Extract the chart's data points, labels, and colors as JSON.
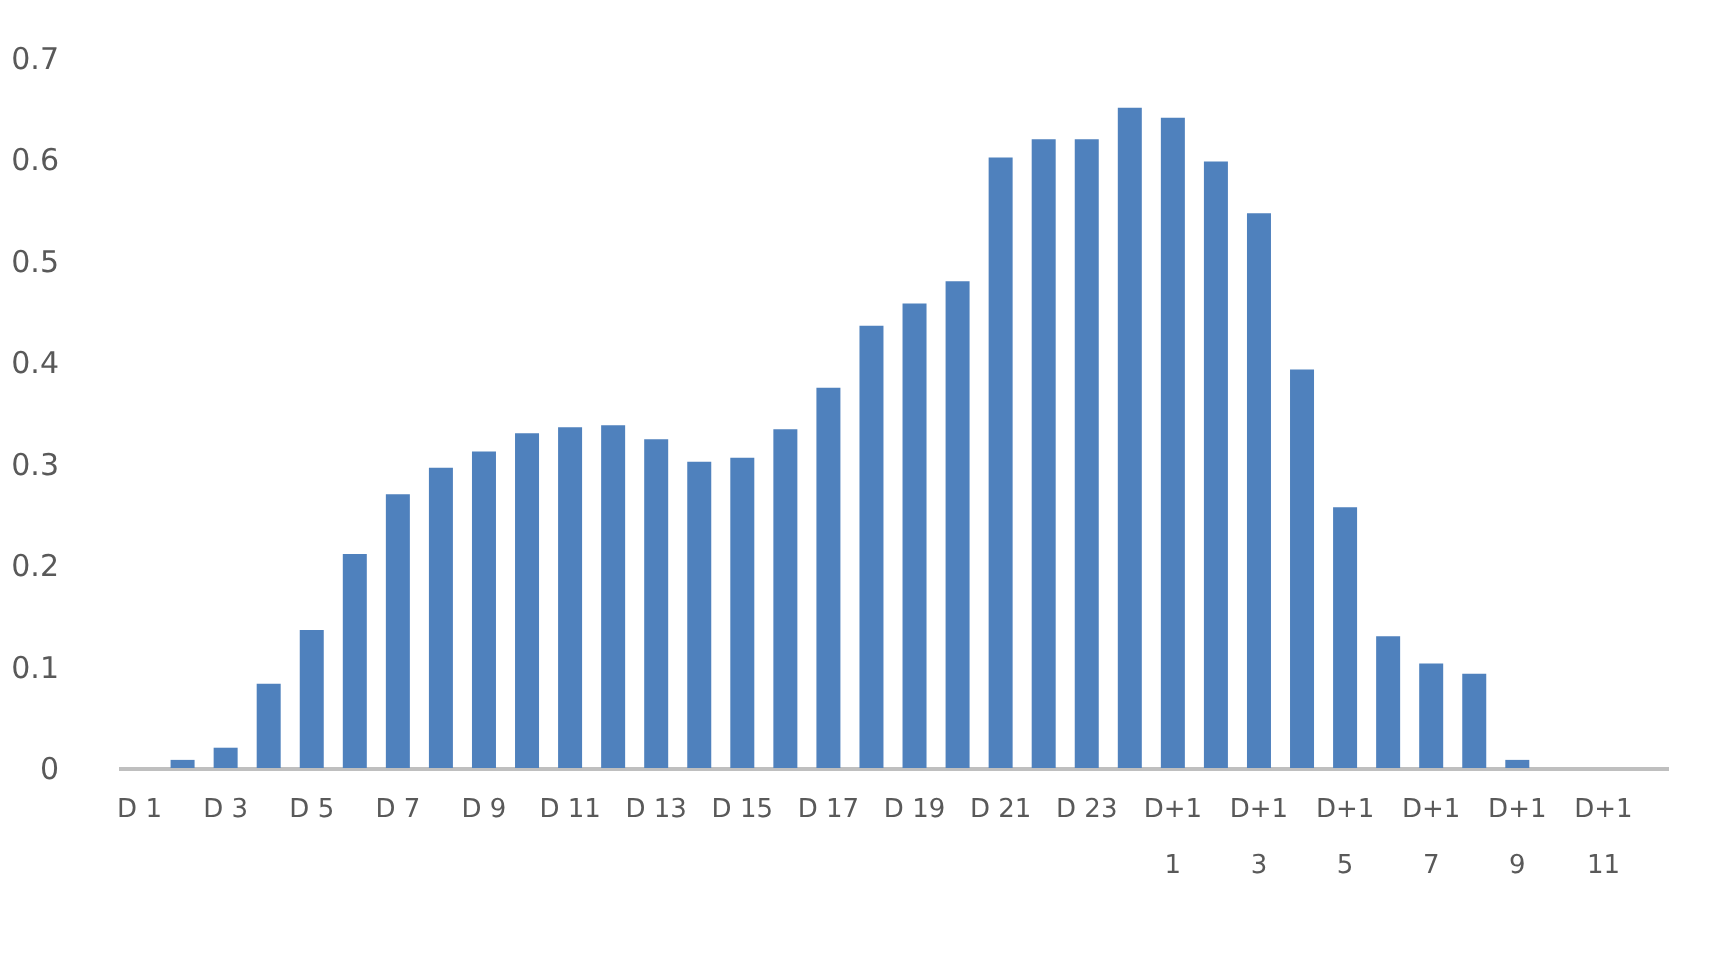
{
  "chart_data": {
    "type": "bar",
    "categories": [
      "D 1",
      null,
      "D 3",
      null,
      "D 5",
      null,
      "D 7",
      null,
      "D 9",
      null,
      "D 11",
      null,
      "D 13",
      null,
      "D 15",
      null,
      "D 17",
      null,
      "D 19",
      null,
      "D 21",
      null,
      "D 23",
      null,
      "D+1 1",
      null,
      "D+1 3",
      null,
      "D+1 5",
      null,
      "D+1 7",
      null,
      "D+1 9",
      null,
      "D+1 11",
      null
    ],
    "values": [
      0,
      0.008,
      0.02,
      0.083,
      0.136,
      0.211,
      0.27,
      0.296,
      0.312,
      0.33,
      0.336,
      0.338,
      0.324,
      0.302,
      0.306,
      0.334,
      0.375,
      0.436,
      0.458,
      0.48,
      0.602,
      0.62,
      0.62,
      0.651,
      0.641,
      0.598,
      0.547,
      0.393,
      0.257,
      0.13,
      0.103,
      0.093,
      0.008,
      0,
      0,
      0
    ],
    "color": "#4f81bd",
    "ylim": [
      0,
      0.7
    ],
    "yticks": [
      0,
      0.1,
      0.2,
      0.3,
      0.4,
      0.5,
      0.6,
      0.7
    ],
    "grid": false
  }
}
